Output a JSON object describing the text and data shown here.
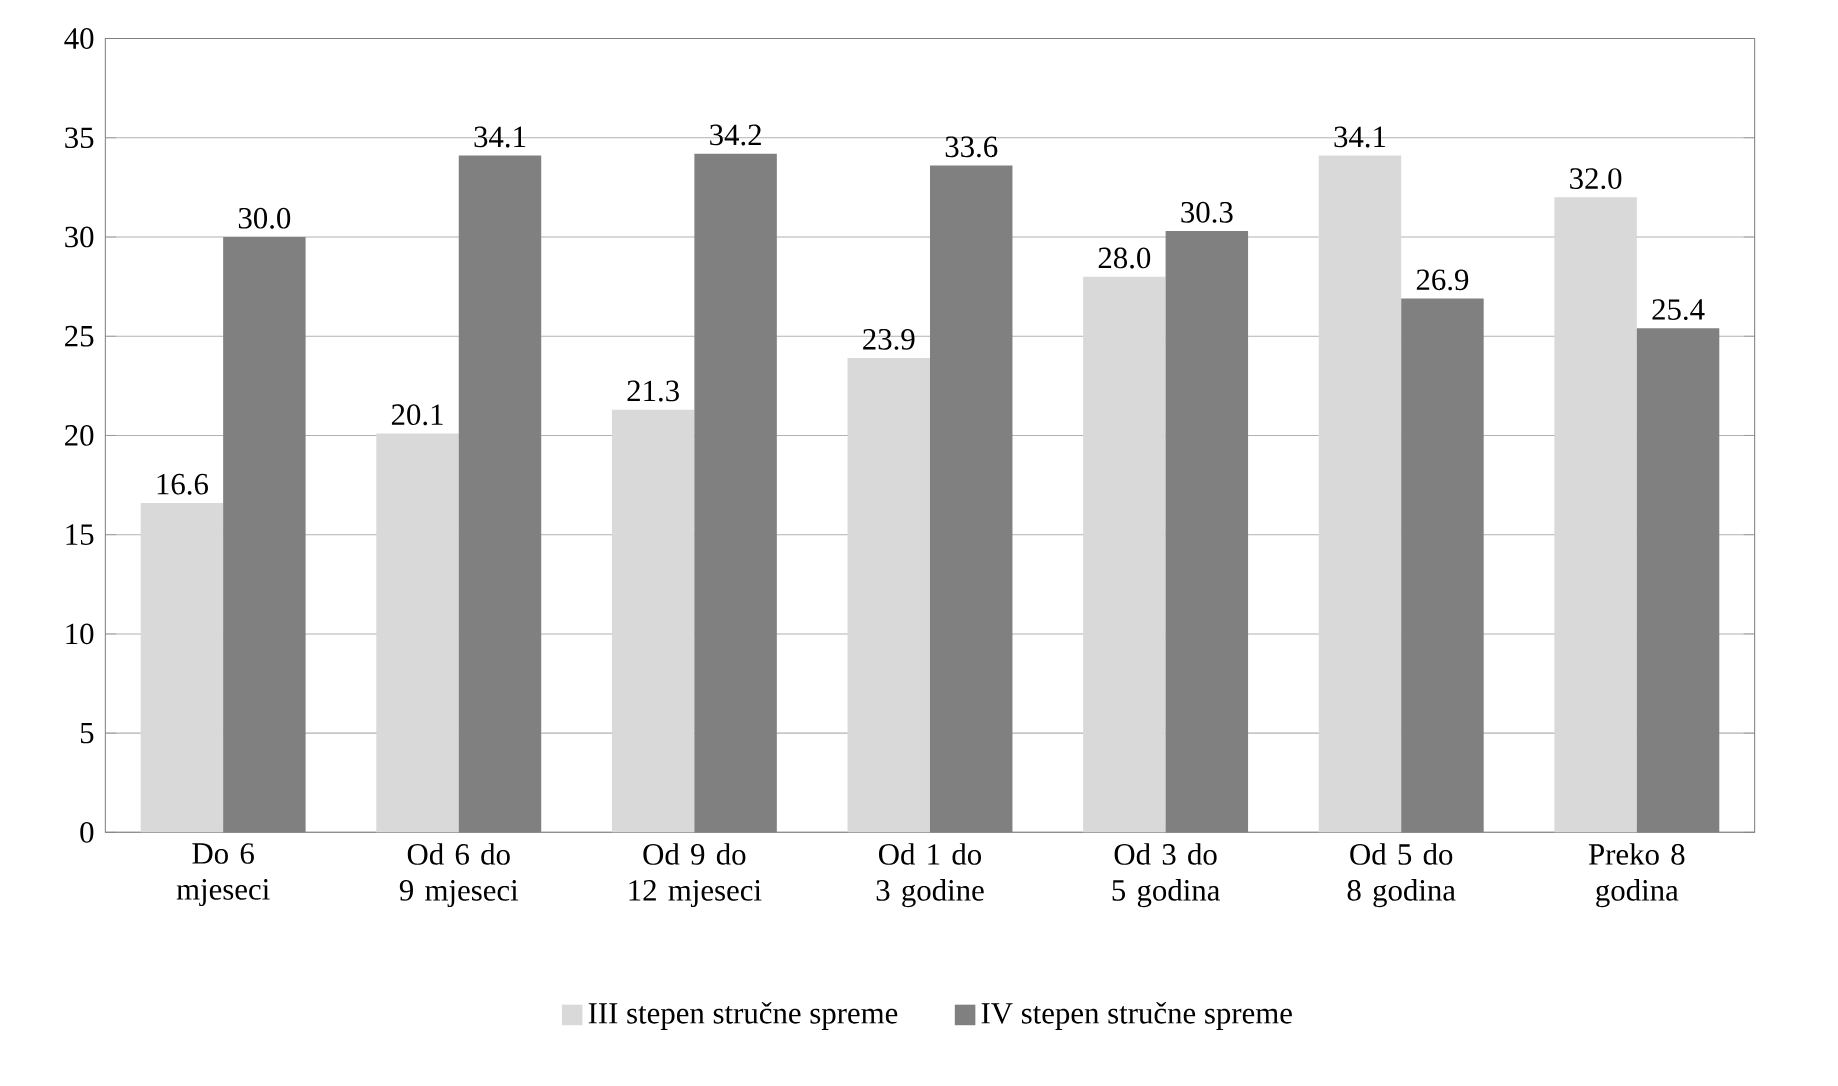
{
  "chart_data": {
    "type": "bar",
    "categories": [
      "Do 6 mjeseci",
      "Od 6 do 9 mjeseci",
      "Od 9 do 12 mjeseci",
      "Od 1 do 3 godine",
      "Od 3 do 5 godina",
      "Od 5 do 8 godina",
      "Preko 8 godina"
    ],
    "series": [
      {
        "name": "III stepen stručne spreme",
        "color": "#d9d9d9",
        "values": [
          16.6,
          20.1,
          21.3,
          23.9,
          28.0,
          34.1,
          32.0
        ],
        "value_labels": [
          "16.6",
          "20.1",
          "21.3",
          "23.9",
          "28.0",
          "34.1",
          "32.0"
        ]
      },
      {
        "name": "IV stepen stručne spreme",
        "color": "#808080",
        "values": [
          30.0,
          34.1,
          34.2,
          33.6,
          30.3,
          26.9,
          25.4
        ],
        "value_labels": [
          "30.0",
          "34.1",
          "34.2",
          "33.6",
          "30.3",
          "26.9",
          "25.4"
        ]
      }
    ],
    "ylim": [
      0,
      40
    ],
    "yticks": [
      0,
      5,
      10,
      15,
      20,
      25,
      30,
      35,
      40
    ],
    "grid": "y",
    "legend": "bottom"
  }
}
